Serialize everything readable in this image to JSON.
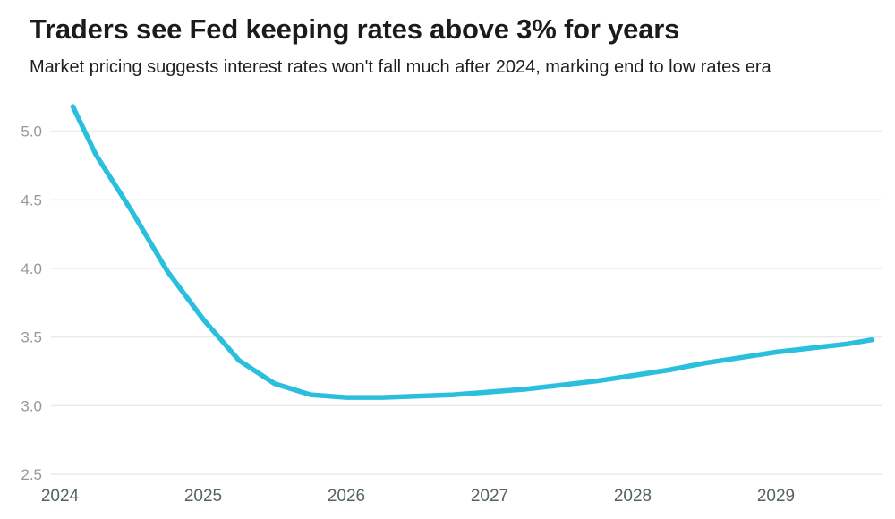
{
  "header": {
    "title": "Traders see Fed keeping rates above 3% for years",
    "subtitle": "Market pricing suggests interest rates won't fall much after 2024, marking end to low rates era"
  },
  "colors": {
    "line": "#2abfdc",
    "grid": "#e9eaea",
    "y_tick": "#929b9b",
    "x_tick": "#556264",
    "title": "#1b1b1b"
  },
  "chart_data": {
    "type": "line",
    "title": "Traders see Fed keeping rates above 3% for years",
    "subtitle": "Market pricing suggests interest rates won't fall much after 2024, marking end to low rates era",
    "xlabel": "",
    "ylabel": "",
    "x": [
      2024.09,
      2024.25,
      2024.5,
      2024.75,
      2025.0,
      2025.25,
      2025.5,
      2025.75,
      2026.0,
      2026.25,
      2026.5,
      2026.75,
      2027.0,
      2027.25,
      2027.5,
      2027.75,
      2028.0,
      2028.25,
      2028.5,
      2028.75,
      2029.0,
      2029.25,
      2029.5,
      2029.67
    ],
    "values": [
      5.18,
      4.83,
      4.42,
      3.98,
      3.63,
      3.33,
      3.16,
      3.08,
      3.06,
      3.06,
      3.07,
      3.08,
      3.1,
      3.12,
      3.15,
      3.18,
      3.22,
      3.26,
      3.31,
      3.35,
      3.39,
      3.42,
      3.45,
      3.48
    ],
    "x_ticks": [
      2024,
      2025,
      2026,
      2027,
      2028,
      2029
    ],
    "y_ticks": [
      2.5,
      3.0,
      3.5,
      4.0,
      4.5,
      5.0
    ],
    "xlim": [
      2023.94,
      2029.78
    ],
    "ylim": [
      2.5,
      5.25
    ],
    "grid": "horizontal",
    "legend": "none"
  }
}
